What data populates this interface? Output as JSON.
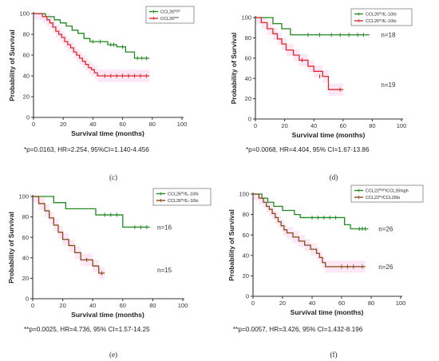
{
  "colors": {
    "green": "#1f8a1f",
    "red": "#e02828",
    "brown": "#8a4a14",
    "shade_pink": "#f7d4ec",
    "shade_green": "#dcefdc"
  },
  "chart_data": [
    {
      "type": "line",
      "panel": "(c)",
      "ylabel": "Probability of Survival",
      "xlabel": "Survival time (months)",
      "xlim": [
        0,
        100
      ],
      "ylim": [
        0,
        100
      ],
      "xticks": [
        0,
        20,
        40,
        60,
        80,
        100
      ],
      "yticks": [
        0,
        20,
        40,
        60,
        80,
        100
      ],
      "legend": {
        "position": "top-right"
      },
      "stats": "*p=0.0163, HR=2.254, 95%CI=1.140-4.456",
      "n_labels": [],
      "series": [
        {
          "name": "CCL26^high",
          "legend_main": "CCL26",
          "legend_sup": "high",
          "legend_sub": "",
          "color": "#1f8a1f",
          "steps": [
            [
              0,
              100
            ],
            [
              8,
              97
            ],
            [
              14,
              94
            ],
            [
              18,
              91
            ],
            [
              22,
              88
            ],
            [
              26,
              84
            ],
            [
              30,
              81
            ],
            [
              34,
              76
            ],
            [
              38,
              73
            ],
            [
              50,
              70
            ],
            [
              56,
              68
            ],
            [
              62,
              63
            ],
            [
              68,
              57
            ],
            [
              78,
              57
            ]
          ],
          "censor": [
            [
              40,
              73
            ],
            [
              45,
              73
            ],
            [
              52,
              70
            ],
            [
              54,
              70
            ],
            [
              60,
              68
            ],
            [
              70,
              57
            ],
            [
              73,
              57
            ],
            [
              76,
              57
            ]
          ]
        },
        {
          "name": "CCL26^low",
          "legend_main": "CCL26",
          "legend_sup": "low",
          "legend_sub": "",
          "color": "#e02828",
          "steps": [
            [
              0,
              100
            ],
            [
              6,
              97
            ],
            [
              9,
              94
            ],
            [
              11,
              91
            ],
            [
              13,
              87
            ],
            [
              15,
              83
            ],
            [
              17,
              80
            ],
            [
              19,
              77
            ],
            [
              21,
              73
            ],
            [
              23,
              70
            ],
            [
              25,
              67
            ],
            [
              27,
              63
            ],
            [
              29,
              60
            ],
            [
              31,
              57
            ],
            [
              33,
              54
            ],
            [
              35,
              51
            ],
            [
              37,
              48
            ],
            [
              39,
              46
            ],
            [
              41,
              43
            ],
            [
              43,
              40
            ],
            [
              78,
              40
            ]
          ],
          "censor": [
            [
              48,
              40
            ],
            [
              52,
              40
            ],
            [
              56,
              40
            ],
            [
              60,
              40
            ],
            [
              64,
              40
            ],
            [
              68,
              40
            ],
            [
              72,
              40
            ],
            [
              76,
              40
            ]
          ]
        }
      ]
    },
    {
      "type": "line",
      "panel": "(d)",
      "ylabel": "Probability of Survival",
      "xlabel": "Survival time (months)",
      "xlim": [
        0,
        100
      ],
      "ylim": [
        0,
        100
      ],
      "xticks": [
        0,
        20,
        40,
        60,
        80,
        100
      ],
      "yticks": [
        0,
        20,
        40,
        60,
        80,
        100
      ],
      "legend": {
        "position": "top-right"
      },
      "stats": "*p=0.0068, HR=4.404, 95% CI=1.67-13.86",
      "n_labels": [
        {
          "text": "n=18",
          "x": 86,
          "y": 83
        },
        {
          "text": "n=19",
          "x": 86,
          "y": 34
        }
      ],
      "series": [
        {
          "name": "CCL26^hi/IL-10^hi",
          "legend_main": "CCL26",
          "legend_sup": "hi",
          "legend_sub": "/IL-10hi",
          "color": "#1f8a1f",
          "steps": [
            [
              0,
              100
            ],
            [
              12,
              94
            ],
            [
              18,
              89
            ],
            [
              24,
              83
            ],
            [
              78,
              83
            ]
          ],
          "censor": [
            [
              36,
              83
            ],
            [
              44,
              83
            ],
            [
              52,
              83
            ],
            [
              58,
              83
            ],
            [
              64,
              83
            ],
            [
              70,
              83
            ],
            [
              74,
              83
            ]
          ]
        },
        {
          "name": "CCL26^lo/IL-10^lo",
          "legend_main": "CCL26",
          "legend_sup": "lo",
          "legend_sub": "/IL-10lo",
          "color": "#e02828",
          "steps": [
            [
              0,
              100
            ],
            [
              4,
              95
            ],
            [
              8,
              89
            ],
            [
              12,
              84
            ],
            [
              15,
              79
            ],
            [
              18,
              74
            ],
            [
              21,
              68
            ],
            [
              26,
              63
            ],
            [
              30,
              58
            ],
            [
              36,
              52
            ],
            [
              40,
              47
            ],
            [
              46,
              42
            ],
            [
              50,
              29
            ],
            [
              60,
              29
            ]
          ],
          "censor": [
            [
              32,
              58
            ],
            [
              44,
              42
            ],
            [
              58,
              29
            ]
          ]
        }
      ]
    },
    {
      "type": "line",
      "panel": "(e)",
      "ylabel": "Probability of Survival",
      "xlabel": "Survival time (months)",
      "xlim": [
        0,
        100
      ],
      "ylim": [
        0,
        100
      ],
      "xticks": [
        0,
        20,
        40,
        60,
        80,
        100
      ],
      "yticks": [
        0,
        20,
        40,
        60,
        80,
        100
      ],
      "legend": {
        "position": "top-right"
      },
      "stats": "**p=0.0025, HR=4.736, 95% CI=1.57-14.25",
      "n_labels": [
        {
          "text": "n=16",
          "x": 83,
          "y": 70
        },
        {
          "text": "n=15",
          "x": 83,
          "y": 28
        }
      ],
      "series": [
        {
          "name": "CCL26^hi/IL-10^hi",
          "legend_main": "CCL26",
          "legend_sup": "hi",
          "legend_sub": "/IL-10hi",
          "color": "#1f8a1f",
          "steps": [
            [
              0,
              100
            ],
            [
              14,
              94
            ],
            [
              22,
              88
            ],
            [
              42,
              82
            ],
            [
              60,
              70
            ],
            [
              78,
              70
            ]
          ],
          "censor": [
            [
              48,
              82
            ],
            [
              52,
              82
            ],
            [
              56,
              82
            ],
            [
              68,
              70
            ],
            [
              72,
              70
            ],
            [
              76,
              70
            ]
          ]
        },
        {
          "name": "CCL26^lo/IL-10^lo",
          "legend_main": "CCL26",
          "legend_sup": "lo",
          "legend_sub": "/IL-10lo",
          "color": "#8a4a14",
          "steps": [
            [
              0,
              100
            ],
            [
              4,
              93
            ],
            [
              8,
              86
            ],
            [
              11,
              79
            ],
            [
              14,
              72
            ],
            [
              17,
              65
            ],
            [
              20,
              58
            ],
            [
              24,
              52
            ],
            [
              28,
              45
            ],
            [
              32,
              38
            ],
            [
              40,
              32
            ],
            [
              44,
              25
            ],
            [
              48,
              25
            ]
          ],
          "censor": [
            [
              36,
              38
            ],
            [
              46,
              25
            ]
          ]
        }
      ]
    },
    {
      "type": "line",
      "panel": "(f)",
      "ylabel": "Probability of Survival",
      "xlabel": "Survival time (months)",
      "xlim": [
        0,
        100
      ],
      "ylim": [
        0,
        100
      ],
      "xticks": [
        0,
        20,
        40,
        60,
        80,
        100
      ],
      "yticks": [
        0,
        20,
        40,
        60,
        80,
        100
      ],
      "legend": {
        "position": "top-right"
      },
      "stats": "**p=0.0057, HR=3.426, 95% CI=1.432-8.196",
      "n_labels": [
        {
          "text": "n=26",
          "x": 85,
          "y": 66
        },
        {
          "text": "n=26",
          "x": 85,
          "y": 29
        }
      ],
      "series": [
        {
          "name": "CCL22^high/CCL26^high",
          "legend_main": "CCL22",
          "legend_sup": "high",
          "legend_sub": "/CCL26high",
          "color": "#1f8a1f",
          "steps": [
            [
              0,
              100
            ],
            [
              6,
              96
            ],
            [
              10,
              92
            ],
            [
              14,
              88
            ],
            [
              20,
              84
            ],
            [
              28,
              80
            ],
            [
              32,
              77
            ],
            [
              62,
              70
            ],
            [
              66,
              66
            ],
            [
              78,
              66
            ]
          ],
          "censor": [
            [
              40,
              77
            ],
            [
              44,
              77
            ],
            [
              48,
              77
            ],
            [
              52,
              77
            ],
            [
              56,
              77
            ],
            [
              72,
              66
            ],
            [
              74,
              66
            ],
            [
              76,
              66
            ]
          ]
        },
        {
          "name": "CCL22^lo/CCL26^lo",
          "legend_main": "CCL22",
          "legend_sup": "lo",
          "legend_sub": "/CCL26lo",
          "color": "#8a4a14",
          "steps": [
            [
              0,
              100
            ],
            [
              4,
              96
            ],
            [
              7,
              92
            ],
            [
              9,
              88
            ],
            [
              11,
              85
            ],
            [
              13,
              81
            ],
            [
              15,
              77
            ],
            [
              17,
              73
            ],
            [
              19,
              69
            ],
            [
              21,
              65
            ],
            [
              23,
              62
            ],
            [
              27,
              58
            ],
            [
              31,
              54
            ],
            [
              35,
              50
            ],
            [
              39,
              46
            ],
            [
              43,
              42
            ],
            [
              45,
              38
            ],
            [
              47,
              33
            ],
            [
              49,
              29
            ],
            [
              76,
              29
            ]
          ],
          "censor": [
            [
              60,
              29
            ],
            [
              64,
              29
            ],
            [
              68,
              29
            ],
            [
              74,
              29
            ]
          ]
        }
      ]
    }
  ]
}
